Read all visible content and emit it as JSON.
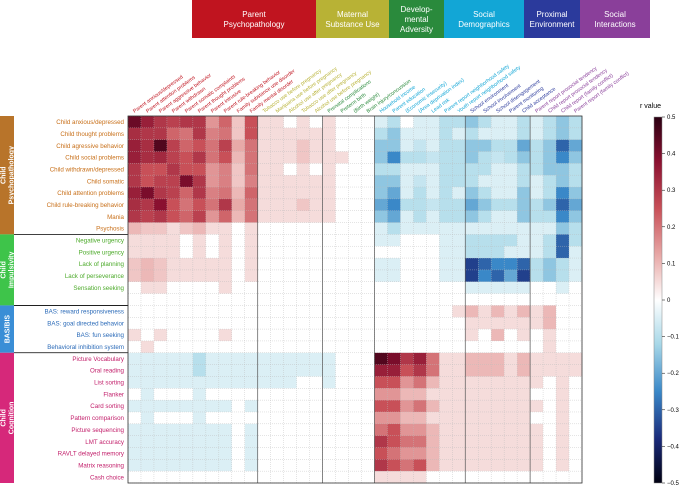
{
  "chart_data": {
    "type": "heatmap",
    "title": "",
    "column_groups": [
      {
        "name": "Parent Psychopathology",
        "lines": [
          "Parent",
          "Psychopathology"
        ],
        "color": "#c0141f",
        "count": 10
      },
      {
        "name": "Maternal Substance Use",
        "lines": [
          "Maternal",
          "Substance Use"
        ],
        "color": "#b8b235",
        "count": 5
      },
      {
        "name": "Developmental Adversity",
        "lines": [
          "Develop-",
          "mental",
          "Adversity"
        ],
        "color": "#2a8a3c",
        "count": 4
      },
      {
        "name": "Social Demographics",
        "lines": [
          "Social",
          "Demographics"
        ],
        "color": "#12a6d6",
        "count": 7
      },
      {
        "name": "Proximal Environment",
        "lines": [
          "Proximal",
          "Environment"
        ],
        "color": "#2b3a9c",
        "count": 5
      },
      {
        "name": "Social Interactions",
        "lines": [
          "Social",
          "Interactions"
        ],
        "color": "#8a3f9a",
        "count": 4
      }
    ],
    "columns": [
      "Parent anxious/depressed",
      "Parent attention problems",
      "Parent aggressive behavior",
      "Parent withdrawn",
      "Parent somatic complaints",
      "Parent thought problems",
      "Parent intrusive",
      "Parent rule-breaking behavior",
      "Family substance use disorder",
      "Family mental disorder",
      "Tobacco use before pregnancy",
      "Marijuana use before pregnancy",
      "Alcohol use after pregnancy",
      "Tobacco use after pregnancy",
      "Alcohol use before pregnancy",
      "Prenatal complications",
      "Preterm birth",
      "(Birth weight)",
      "Brain injury/concussion",
      "Household income",
      "Parent education",
      "(Economic insecurity)",
      "(Area deprivation index)",
      "Lead risk",
      "Parent report neighborhood safety",
      "Youth report neighborhood safety",
      "School environment",
      "School involvement",
      "School disengagement",
      "Parent monitoring",
      "Child acceptance",
      "Parent report prosocial tendency",
      "Child report prosocial tendency",
      "Child report (family conflict)",
      "Parent report (family conflict)"
    ],
    "row_groups": [
      {
        "name": "Child Psychopathology",
        "lines": [
          "Child",
          "Psychopathology"
        ],
        "color": "#b8742a",
        "label_color": "#c8701a",
        "count": 10
      },
      {
        "name": "Child Impulsivity",
        "lines": [
          "Child",
          "Impulsivity"
        ],
        "color": "#3ec44a",
        "label_color": "#4caa2a",
        "count": 6
      },
      {
        "name": "BAS/BIS",
        "lines": [
          "BAS/BIS"
        ],
        "color": "#3a8ed6",
        "label_color": "#2a6ab8",
        "count": 4
      },
      {
        "name": "Child Cognition",
        "lines": [
          "Child",
          "Cognition"
        ],
        "color": "#d6287a",
        "label_color": "#c21e6a",
        "count": 11
      }
    ],
    "rows": [
      "Child anxious/depressed",
      "Child thought problems",
      "Child agressive behavior",
      "Child social problems",
      "Child withdrawn/depressed",
      "Child somatic",
      "Child attention problems",
      "Child rule-breaking behavior",
      "Mania",
      "Psychosis",
      "Negative urgency",
      "Positive urgency",
      "Lack of planning",
      "Lack of perseverance",
      "Sensation seeking",
      "",
      "BAS: reward responsiveness",
      "BAS: goal directed behavior",
      "BAS: fun seeking",
      "Behavioral inhibition system",
      "Picture Vocabulary",
      "Oral reading",
      "List sorting",
      "Flanker",
      "Card sorting",
      "Pattern comparison",
      "Picture sequencing",
      "LMT accuracy",
      "RAVLT delayed memory",
      "Matrix reasoning",
      "Cash choice"
    ],
    "values": [
      [
        0.42,
        0.35,
        0.3,
        0.28,
        0.3,
        0.3,
        0.15,
        0.22,
        0.08,
        0.25,
        0.05,
        0.05,
        0.0,
        0.05,
        0.0,
        0.05,
        0.0,
        0.0,
        0.0,
        -0.05,
        -0.1,
        0.0,
        -0.05,
        -0.05,
        -0.1,
        -0.1,
        -0.15,
        -0.1,
        -0.05,
        -0.05,
        -0.1,
        -0.05,
        -0.1,
        -0.15,
        -0.1
      ],
      [
        0.32,
        0.3,
        0.3,
        0.22,
        0.2,
        0.3,
        0.18,
        0.2,
        0.08,
        0.25,
        0.05,
        0.05,
        0.05,
        0.05,
        0.05,
        0.05,
        0.0,
        0.0,
        0.0,
        -0.1,
        -0.15,
        -0.05,
        -0.05,
        -0.05,
        -0.1,
        -0.05,
        -0.1,
        -0.05,
        -0.05,
        -0.05,
        -0.1,
        -0.05,
        -0.1,
        -0.15,
        -0.1
      ],
      [
        0.35,
        0.32,
        0.45,
        0.28,
        0.22,
        0.25,
        0.2,
        0.28,
        0.12,
        0.2,
        0.05,
        0.05,
        0.05,
        0.08,
        0.05,
        0.05,
        0.0,
        0.0,
        0.0,
        -0.15,
        -0.15,
        -0.05,
        -0.08,
        -0.05,
        -0.1,
        -0.1,
        -0.15,
        -0.15,
        -0.1,
        -0.1,
        -0.2,
        -0.1,
        -0.15,
        -0.3,
        -0.2
      ],
      [
        0.35,
        0.32,
        0.33,
        0.28,
        0.25,
        0.3,
        0.2,
        0.25,
        0.1,
        0.2,
        0.05,
        0.05,
        0.05,
        0.08,
        0.05,
        0.05,
        0.05,
        0.0,
        0.0,
        -0.15,
        -0.25,
        -0.1,
        -0.1,
        -0.08,
        -0.1,
        -0.1,
        -0.15,
        -0.1,
        -0.08,
        -0.1,
        -0.15,
        -0.1,
        -0.15,
        -0.25,
        -0.15
      ],
      [
        0.3,
        0.25,
        0.25,
        0.3,
        0.25,
        0.25,
        0.15,
        0.18,
        0.08,
        0.2,
        0.05,
        0.05,
        0.0,
        0.05,
        0.0,
        0.05,
        0.0,
        0.0,
        0.0,
        -0.1,
        -0.1,
        -0.05,
        -0.05,
        -0.05,
        -0.1,
        -0.1,
        -0.1,
        -0.1,
        -0.05,
        -0.05,
        -0.1,
        -0.1,
        -0.15,
        -0.15,
        -0.1
      ],
      [
        0.3,
        0.25,
        0.28,
        0.28,
        0.4,
        0.3,
        0.15,
        0.18,
        0.08,
        0.18,
        0.05,
        0.05,
        0.05,
        0.05,
        0.05,
        0.05,
        0.0,
        0.0,
        0.0,
        -0.15,
        -0.15,
        -0.05,
        -0.08,
        -0.05,
        -0.1,
        -0.1,
        -0.1,
        -0.05,
        -0.05,
        -0.05,
        -0.1,
        -0.05,
        -0.1,
        -0.15,
        -0.1
      ],
      [
        0.35,
        0.4,
        0.3,
        0.28,
        0.22,
        0.3,
        0.18,
        0.2,
        0.1,
        0.22,
        0.05,
        0.05,
        0.05,
        0.05,
        0.05,
        0.05,
        0.0,
        0.0,
        0.0,
        -0.15,
        -0.2,
        -0.05,
        -0.1,
        -0.05,
        -0.1,
        -0.05,
        -0.15,
        -0.1,
        -0.05,
        -0.05,
        -0.15,
        -0.05,
        -0.1,
        -0.25,
        -0.15
      ],
      [
        0.32,
        0.3,
        0.38,
        0.25,
        0.2,
        0.25,
        0.2,
        0.3,
        0.12,
        0.2,
        0.05,
        0.05,
        0.05,
        0.08,
        0.05,
        0.05,
        0.0,
        0.0,
        0.0,
        -0.2,
        -0.25,
        -0.1,
        -0.1,
        -0.08,
        -0.1,
        -0.1,
        -0.2,
        -0.15,
        -0.1,
        -0.1,
        -0.15,
        -0.1,
        -0.15,
        -0.3,
        -0.2
      ],
      [
        0.3,
        0.28,
        0.3,
        0.25,
        0.22,
        0.28,
        0.15,
        0.22,
        0.1,
        0.2,
        0.05,
        0.05,
        0.05,
        0.05,
        0.05,
        0.05,
        0.0,
        0.0,
        0.0,
        -0.15,
        -0.2,
        -0.05,
        -0.1,
        -0.05,
        -0.1,
        -0.1,
        -0.15,
        -0.1,
        -0.05,
        -0.05,
        -0.15,
        -0.1,
        -0.1,
        -0.25,
        -0.15
      ],
      [
        0.1,
        0.08,
        0.08,
        0.05,
        0.08,
        0.1,
        0.05,
        0.05,
        0.0,
        0.05,
        0.0,
        0.0,
        0.0,
        0.0,
        0.0,
        0.0,
        0.0,
        0.0,
        0.0,
        -0.05,
        -0.1,
        -0.05,
        -0.05,
        -0.05,
        -0.05,
        -0.05,
        -0.05,
        -0.05,
        -0.05,
        -0.05,
        -0.05,
        -0.05,
        -0.05,
        -0.15,
        -0.1
      ],
      [
        0.05,
        0.05,
        0.05,
        0.05,
        0.0,
        0.05,
        0.0,
        0.05,
        0.0,
        0.05,
        0.0,
        0.0,
        0.0,
        0.0,
        0.0,
        0.0,
        0.0,
        0.0,
        0.0,
        -0.05,
        -0.05,
        0.0,
        0.0,
        0.0,
        -0.05,
        -0.05,
        -0.1,
        -0.1,
        -0.1,
        -0.1,
        -0.05,
        -0.05,
        -0.1,
        -0.3,
        -0.1
      ],
      [
        0.05,
        0.05,
        0.05,
        0.05,
        0.0,
        0.05,
        0.0,
        0.05,
        0.0,
        0.05,
        0.0,
        0.0,
        0.0,
        0.0,
        0.0,
        0.0,
        0.0,
        0.0,
        0.0,
        0.0,
        0.0,
        0.0,
        0.0,
        0.0,
        -0.05,
        -0.05,
        -0.1,
        -0.1,
        -0.1,
        -0.05,
        -0.05,
        -0.05,
        -0.1,
        -0.3,
        -0.05
      ],
      [
        0.08,
        0.1,
        0.08,
        0.05,
        0.05,
        0.05,
        0.05,
        0.05,
        0.0,
        0.05,
        0.0,
        0.0,
        0.0,
        0.0,
        0.0,
        0.0,
        0.0,
        0.0,
        0.0,
        -0.05,
        -0.05,
        0.0,
        0.0,
        0.0,
        -0.05,
        -0.05,
        -0.35,
        -0.3,
        -0.25,
        -0.25,
        -0.3,
        -0.1,
        -0.15,
        -0.1,
        -0.05
      ],
      [
        0.08,
        0.1,
        0.08,
        0.05,
        0.05,
        0.05,
        0.05,
        0.05,
        0.0,
        0.05,
        0.0,
        0.0,
        0.0,
        0.0,
        0.0,
        0.0,
        0.0,
        0.0,
        0.0,
        -0.05,
        -0.05,
        0.0,
        0.0,
        0.0,
        -0.05,
        -0.05,
        -0.35,
        -0.25,
        -0.3,
        -0.2,
        -0.35,
        -0.1,
        -0.15,
        -0.1,
        -0.05
      ],
      [
        0.0,
        0.05,
        0.05,
        0.0,
        0.0,
        0.0,
        0.0,
        0.05,
        0.0,
        0.0,
        0.0,
        0.0,
        0.0,
        0.0,
        0.0,
        0.0,
        0.0,
        0.0,
        0.0,
        0.0,
        0.0,
        0.0,
        0.0,
        0.0,
        0.0,
        0.0,
        -0.05,
        -0.05,
        -0.05,
        -0.05,
        -0.05,
        0.0,
        0.0,
        -0.05,
        0.0
      ],
      [
        0.0,
        0.0,
        0.0,
        0.0,
        0.0,
        0.0,
        0.0,
        0.0,
        0.0,
        0.0,
        0.0,
        0.0,
        0.0,
        0.0,
        0.0,
        0.0,
        0.0,
        0.0,
        0.0,
        0.0,
        0.0,
        0.0,
        0.0,
        0.0,
        0.0,
        0.0,
        0.0,
        0.0,
        0.0,
        0.0,
        0.0,
        0.0,
        0.0,
        0.0,
        0.0
      ],
      [
        0.0,
        0.0,
        0.0,
        0.0,
        0.0,
        0.0,
        0.0,
        0.0,
        0.0,
        0.0,
        0.0,
        0.0,
        0.0,
        0.0,
        0.0,
        0.0,
        0.0,
        0.0,
        0.0,
        0.0,
        0.0,
        0.0,
        0.0,
        0.0,
        0.0,
        0.05,
        0.1,
        0.05,
        0.1,
        0.05,
        0.1,
        0.05,
        0.1,
        0.0,
        0.0
      ],
      [
        0.0,
        0.0,
        0.0,
        0.0,
        0.0,
        0.0,
        0.0,
        0.0,
        0.0,
        0.0,
        0.0,
        0.0,
        0.0,
        0.0,
        0.0,
        0.0,
        0.0,
        0.0,
        0.0,
        0.0,
        0.0,
        0.0,
        0.0,
        0.0,
        0.0,
        0.0,
        0.05,
        0.05,
        0.05,
        0.05,
        0.05,
        0.05,
        0.1,
        0.0,
        0.0
      ],
      [
        0.05,
        0.0,
        0.05,
        0.0,
        0.0,
        0.0,
        0.0,
        0.05,
        0.0,
        0.0,
        0.0,
        0.0,
        0.0,
        0.0,
        0.0,
        0.0,
        0.0,
        0.0,
        0.0,
        0.0,
        0.0,
        0.0,
        0.0,
        0.0,
        0.0,
        0.0,
        0.05,
        0.0,
        0.1,
        0.0,
        0.05,
        0.0,
        0.05,
        0.0,
        0.0
      ],
      [
        0.0,
        0.05,
        0.0,
        0.0,
        0.0,
        0.0,
        0.0,
        0.0,
        0.0,
        0.0,
        0.0,
        0.0,
        0.0,
        0.0,
        0.0,
        0.0,
        0.0,
        0.0,
        0.0,
        0.0,
        0.0,
        0.0,
        0.0,
        0.0,
        0.0,
        0.0,
        0.0,
        0.0,
        0.0,
        0.0,
        0.0,
        0.0,
        0.05,
        0.0,
        0.0
      ],
      [
        -0.05,
        -0.05,
        -0.05,
        -0.05,
        -0.05,
        -0.1,
        -0.05,
        -0.05,
        -0.05,
        -0.05,
        -0.05,
        -0.05,
        -0.05,
        -0.05,
        -0.05,
        -0.05,
        0.0,
        0.0,
        0.0,
        0.45,
        0.4,
        0.3,
        0.35,
        0.2,
        0.05,
        0.05,
        0.1,
        0.1,
        0.1,
        0.05,
        0.1,
        0.05,
        0.05,
        0.05,
        0.05
      ],
      [
        -0.05,
        -0.05,
        -0.05,
        -0.05,
        -0.05,
        -0.1,
        -0.05,
        -0.05,
        -0.05,
        -0.05,
        -0.05,
        -0.05,
        -0.05,
        -0.05,
        -0.05,
        -0.05,
        0.0,
        0.0,
        0.0,
        0.35,
        0.35,
        0.25,
        0.3,
        0.2,
        0.05,
        0.05,
        0.1,
        0.1,
        0.1,
        0.05,
        0.1,
        0.05,
        0.05,
        0.05,
        0.05
      ],
      [
        -0.05,
        -0.05,
        -0.05,
        -0.05,
        -0.05,
        -0.05,
        -0.05,
        -0.05,
        -0.05,
        -0.05,
        -0.05,
        -0.05,
        -0.05,
        0.0,
        0.0,
        -0.05,
        0.0,
        0.0,
        0.0,
        0.25,
        0.25,
        0.15,
        0.2,
        0.1,
        0.05,
        0.05,
        0.05,
        0.05,
        0.05,
        0.05,
        0.05,
        0.05,
        0.0,
        0.05,
        0.0
      ],
      [
        0.0,
        -0.05,
        0.0,
        0.0,
        0.0,
        -0.05,
        0.0,
        0.0,
        0.0,
        0.0,
        0.0,
        0.0,
        0.0,
        0.0,
        0.0,
        0.0,
        0.0,
        0.0,
        0.0,
        0.15,
        0.15,
        0.1,
        0.1,
        0.05,
        0.05,
        0.05,
        0.05,
        0.05,
        0.05,
        0.05,
        0.05,
        0.0,
        0.0,
        0.05,
        0.0
      ],
      [
        -0.05,
        -0.05,
        -0.05,
        -0.05,
        -0.05,
        -0.05,
        -0.05,
        -0.05,
        0.0,
        -0.05,
        0.0,
        0.0,
        0.0,
        0.0,
        0.0,
        0.0,
        0.0,
        0.0,
        0.0,
        0.25,
        0.25,
        0.15,
        0.2,
        0.1,
        0.05,
        0.05,
        0.05,
        0.05,
        0.05,
        0.05,
        0.05,
        0.05,
        0.0,
        0.05,
        0.0
      ],
      [
        0.0,
        -0.05,
        0.0,
        0.0,
        0.0,
        -0.05,
        0.0,
        0.0,
        0.0,
        0.0,
        0.0,
        0.0,
        0.0,
        0.0,
        0.0,
        0.0,
        0.0,
        0.0,
        0.0,
        0.15,
        0.15,
        0.1,
        0.1,
        0.05,
        0.05,
        0.05,
        0.05,
        0.05,
        0.05,
        0.05,
        0.05,
        0.0,
        0.0,
        0.05,
        0.0
      ],
      [
        -0.05,
        -0.05,
        -0.05,
        -0.05,
        -0.05,
        -0.05,
        -0.05,
        -0.05,
        0.0,
        -0.05,
        0.0,
        0.0,
        0.0,
        0.0,
        0.0,
        0.0,
        0.0,
        0.0,
        0.0,
        0.2,
        0.25,
        0.15,
        0.15,
        0.1,
        0.05,
        0.05,
        0.05,
        0.05,
        0.05,
        0.05,
        0.05,
        0.05,
        0.0,
        0.05,
        0.0
      ],
      [
        -0.05,
        -0.05,
        -0.05,
        -0.05,
        -0.05,
        -0.05,
        -0.05,
        -0.05,
        0.0,
        -0.05,
        0.0,
        0.0,
        0.0,
        0.0,
        0.0,
        0.0,
        0.0,
        0.0,
        0.0,
        0.3,
        0.25,
        0.2,
        0.2,
        0.1,
        0.05,
        0.05,
        0.05,
        0.05,
        0.05,
        0.05,
        0.05,
        0.05,
        0.0,
        0.05,
        0.0
      ],
      [
        -0.05,
        -0.05,
        -0.05,
        -0.05,
        -0.05,
        -0.05,
        -0.05,
        -0.05,
        0.0,
        -0.05,
        0.0,
        0.0,
        0.0,
        0.0,
        0.0,
        0.0,
        0.0,
        0.0,
        0.0,
        0.25,
        0.2,
        0.15,
        0.15,
        0.1,
        0.05,
        0.05,
        0.05,
        0.05,
        0.05,
        0.05,
        0.05,
        0.05,
        0.0,
        0.05,
        0.0
      ],
      [
        -0.05,
        -0.05,
        -0.05,
        -0.05,
        -0.05,
        -0.05,
        -0.05,
        -0.05,
        0.0,
        -0.05,
        0.0,
        0.0,
        0.0,
        0.0,
        0.0,
        0.0,
        0.0,
        0.0,
        0.0,
        0.3,
        0.25,
        0.2,
        0.25,
        0.1,
        0.05,
        0.05,
        0.05,
        0.05,
        0.05,
        0.05,
        0.05,
        0.05,
        0.0,
        0.05,
        0.0
      ],
      [
        0.0,
        0.0,
        0.0,
        0.0,
        0.0,
        0.0,
        0.0,
        0.0,
        0.0,
        0.0,
        0.0,
        0.0,
        0.0,
        0.0,
        0.0,
        0.0,
        0.0,
        0.0,
        0.0,
        0.05,
        0.05,
        0.05,
        0.05,
        0.0,
        0.0,
        0.0,
        0.0,
        0.0,
        0.0,
        0.0,
        0.0,
        0.0,
        0.0,
        0.0,
        0.0
      ]
    ],
    "colorbar": {
      "label": "r value",
      "min": -0.5,
      "max": 0.5,
      "ticks": [
        0.5,
        0.4,
        0.3,
        0.2,
        0.1,
        0,
        -0.1,
        -0.2,
        -0.3,
        -0.4,
        -0.5
      ]
    },
    "grid": true
  }
}
